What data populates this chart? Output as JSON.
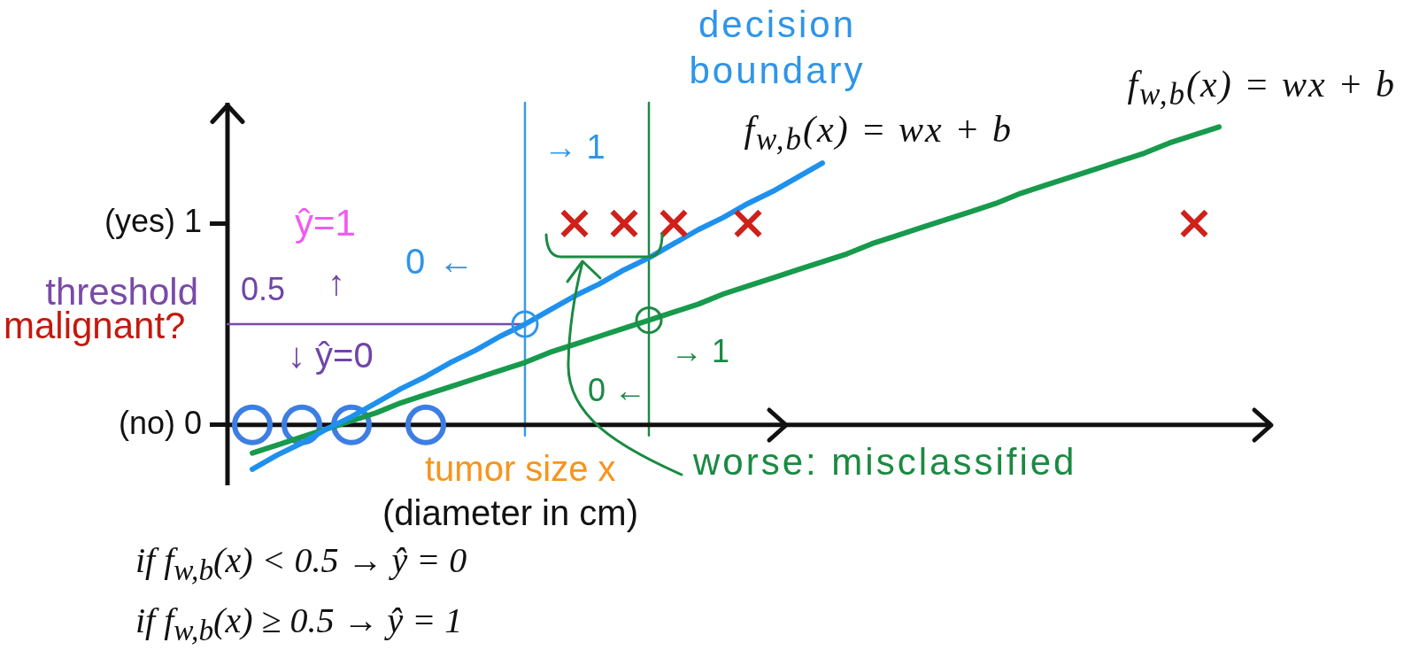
{
  "chart_data": {
    "type": "scatter",
    "xlabel": "tumor size x",
    "ylabel": "malignant?",
    "categories": [
      null,
      null,
      null,
      null,
      null,
      null,
      null,
      null,
      null,
      null,
      null,
      null,
      null,
      null,
      null,
      null,
      null,
      null,
      null,
      null,
      null,
      null,
      null,
      null,
      null,
      null,
      null,
      null,
      null,
      null,
      null,
      null,
      null,
      null,
      null,
      null,
      null,
      null,
      null,
      null,
      null,
      null,
      null
    ],
    "ylim": [
      -0.3,
      1.6
    ],
    "yticks": [
      {
        "value": 0,
        "label": "(no) 0"
      },
      {
        "value": 1,
        "label": "(yes) 1"
      }
    ],
    "series": [
      {
        "marker": "circle",
        "color": "#3d7ee3",
        "values": [
          null,
          0,
          null,
          0,
          null,
          0,
          null,
          null,
          0,
          null,
          null,
          null,
          null,
          null,
          null,
          null,
          null,
          null,
          null,
          null,
          null,
          null,
          null,
          null,
          null,
          null,
          null,
          null,
          null,
          null,
          null,
          null,
          null,
          null,
          null,
          null,
          null,
          null,
          null,
          null,
          null,
          null,
          null
        ]
      },
      {
        "marker": "cross",
        "color": "#d0201a",
        "values": [
          null,
          null,
          null,
          null,
          null,
          null,
          null,
          null,
          null,
          null,
          null,
          null,
          null,
          null,
          1,
          null,
          1,
          null,
          1,
          null,
          null,
          1,
          null,
          null,
          null,
          null,
          null,
          null,
          null,
          null,
          null,
          null,
          null,
          null,
          null,
          null,
          null,
          null,
          null,
          1,
          null,
          null,
          null
        ]
      },
      {
        "type": "line",
        "name": "f$_{w,b}$(x) = wx + b",
        "color": "#1e90ee",
        "values": [
          null,
          -0.22,
          -0.15,
          -0.09,
          -0.02,
          0.04,
          0.11,
          0.18,
          0.24,
          0.31,
          0.37,
          0.44,
          0.5,
          0.57,
          0.64,
          0.7,
          0.77,
          0.83,
          0.9,
          0.97,
          1.03,
          1.1,
          1.16,
          1.23,
          1.3,
          null,
          null,
          null,
          null,
          null,
          null,
          null,
          null,
          null,
          null,
          null,
          null,
          null,
          null,
          null,
          null,
          null,
          null
        ]
      },
      {
        "type": "line",
        "name": "f$_{w,b}$(x) = wx + b",
        "color": "#179a4c",
        "values": [
          null,
          -0.14,
          -0.1,
          -0.06,
          -0.02,
          0.02,
          0.06,
          0.11,
          0.15,
          0.19,
          0.23,
          0.27,
          0.31,
          0.36,
          0.4,
          0.44,
          0.48,
          0.52,
          0.56,
          0.6,
          0.65,
          0.69,
          0.73,
          0.77,
          0.81,
          0.85,
          0.9,
          0.94,
          0.98,
          1.02,
          1.06,
          1.1,
          1.15,
          1.19,
          1.23,
          1.27,
          1.31,
          1.35,
          1.4,
          1.44,
          1.48,
          null,
          null
        ]
      },
      {
        "type": "line",
        "name": "threshold",
        "color": "#7a4aa8",
        "values": [
          0.5,
          0.5,
          0.5,
          0.5,
          0.5,
          0.5,
          0.5,
          0.5,
          0.5,
          0.5,
          0.5,
          0.5,
          0.5,
          null,
          null,
          null,
          null,
          null,
          null,
          null,
          null,
          null,
          null,
          null,
          null,
          null,
          null,
          null,
          null,
          null,
          null,
          null,
          null,
          null,
          null,
          null,
          null,
          null,
          null,
          null,
          null,
          null,
          null
        ]
      },
      {
        "marker": "circle",
        "color": "#2f95e8",
        "values": [
          null,
          null,
          null,
          null,
          null,
          null,
          null,
          null,
          null,
          null,
          null,
          null,
          0.5,
          null,
          null,
          null,
          null,
          null,
          null,
          null,
          null,
          null,
          null,
          null,
          null,
          null,
          null,
          null,
          null,
          null,
          null,
          null,
          null,
          null,
          null,
          null,
          null,
          null,
          null,
          null,
          null,
          null,
          null
        ]
      },
      {
        "marker": "circle",
        "color": "#1f8a45",
        "values": [
          null,
          null,
          null,
          null,
          null,
          null,
          null,
          null,
          null,
          null,
          null,
          null,
          null,
          null,
          null,
          null,
          null,
          0.52,
          null,
          null,
          null,
          null,
          null,
          null,
          null,
          null,
          null,
          null,
          null,
          null,
          null,
          null,
          null,
          null,
          null,
          null,
          null,
          null,
          null,
          null,
          null,
          null,
          null
        ]
      }
    ],
    "ref_lines": [
      {
        "axis": "y",
        "value": 0,
        "color": "#111111"
      }
    ],
    "annotations": [
      "decision boundary",
      "→ 1",
      "ŷ=1",
      "0 ←",
      "↑",
      "0.5",
      "↓ ŷ=0",
      "→ 1",
      "0 ←",
      "(diameter in cm)",
      "worse: misclassified",
      "if f$_{w,b}$(x) < 0.5 → ŷ = 0",
      "if f$_{w,b}$(x) ≥ 0.5 → ŷ = 1"
    ]
  }
}
